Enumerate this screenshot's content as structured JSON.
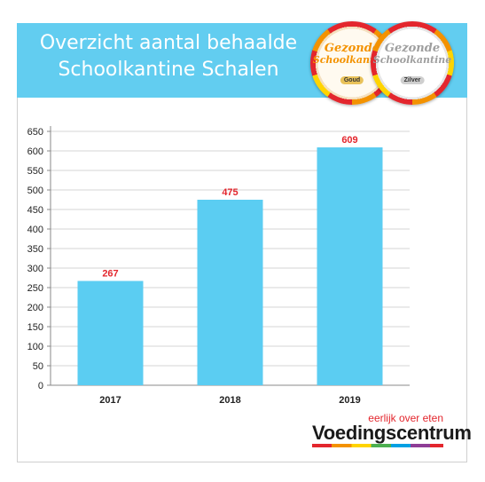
{
  "header": {
    "title_line1": "Overzicht aantal behaalde",
    "title_line2": "Schoolkantine Schalen",
    "banner_color": "#62cdf0"
  },
  "badges": [
    {
      "text_line1": "Gezonde",
      "text_line2": "Schoolkantine",
      "level": "Goud",
      "color": "#f39200"
    },
    {
      "text_line1": "Gezonde",
      "text_line2": "Schoolkantine",
      "level": "Zilver",
      "color": "#9e9e9e"
    }
  ],
  "chart_data": {
    "type": "bar",
    "categories": [
      "2017",
      "2018",
      "2019"
    ],
    "values": [
      267,
      475,
      609
    ],
    "data_labels": [
      "267",
      "475",
      "609"
    ],
    "ylim": [
      0,
      650
    ],
    "yticks": [
      0,
      50,
      100,
      150,
      200,
      250,
      300,
      350,
      400,
      450,
      500,
      550,
      600,
      650
    ],
    "grid": true,
    "bar_color": "#5bcdf2",
    "label_color": "#e3262d"
  },
  "logo": {
    "tagline": "eerlijk over eten",
    "name": "Voedingscentrum"
  }
}
